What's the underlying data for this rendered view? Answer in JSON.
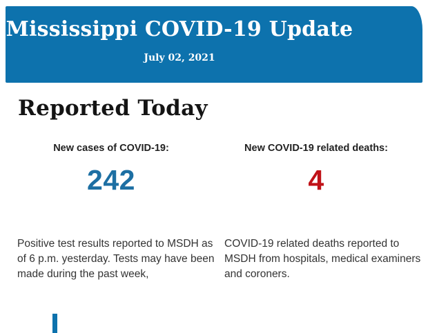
{
  "colors": {
    "banner_background": "#0D72AD",
    "banner_text": "#FFFFFF",
    "heading_text": "#141414",
    "label_text": "#222222",
    "body_text": "#333333",
    "cases_value_color": "#1D6FA3",
    "deaths_value_color": "#C01218"
  },
  "banner": {
    "title": "Mississippi COVID-19 Update",
    "date": "July 02, 2021"
  },
  "section": {
    "heading": "Reported Today"
  },
  "stats": [
    {
      "label": "New cases of COVID-19:",
      "value": "242",
      "value_color": "#1D6FA3",
      "description_lines": [
        "Positive test results reported to MSDH as",
        "of 6 p.m. yesterday. Tests may have been",
        "made during the past week,"
      ]
    },
    {
      "label": "New COVID-19 related deaths:",
      "value": "4",
      "value_color": "#C01218",
      "description_lines": [
        "COVID-19 related deaths reported to",
        "MSDH from hospitals, medical examiners",
        "and coroners."
      ]
    }
  ]
}
